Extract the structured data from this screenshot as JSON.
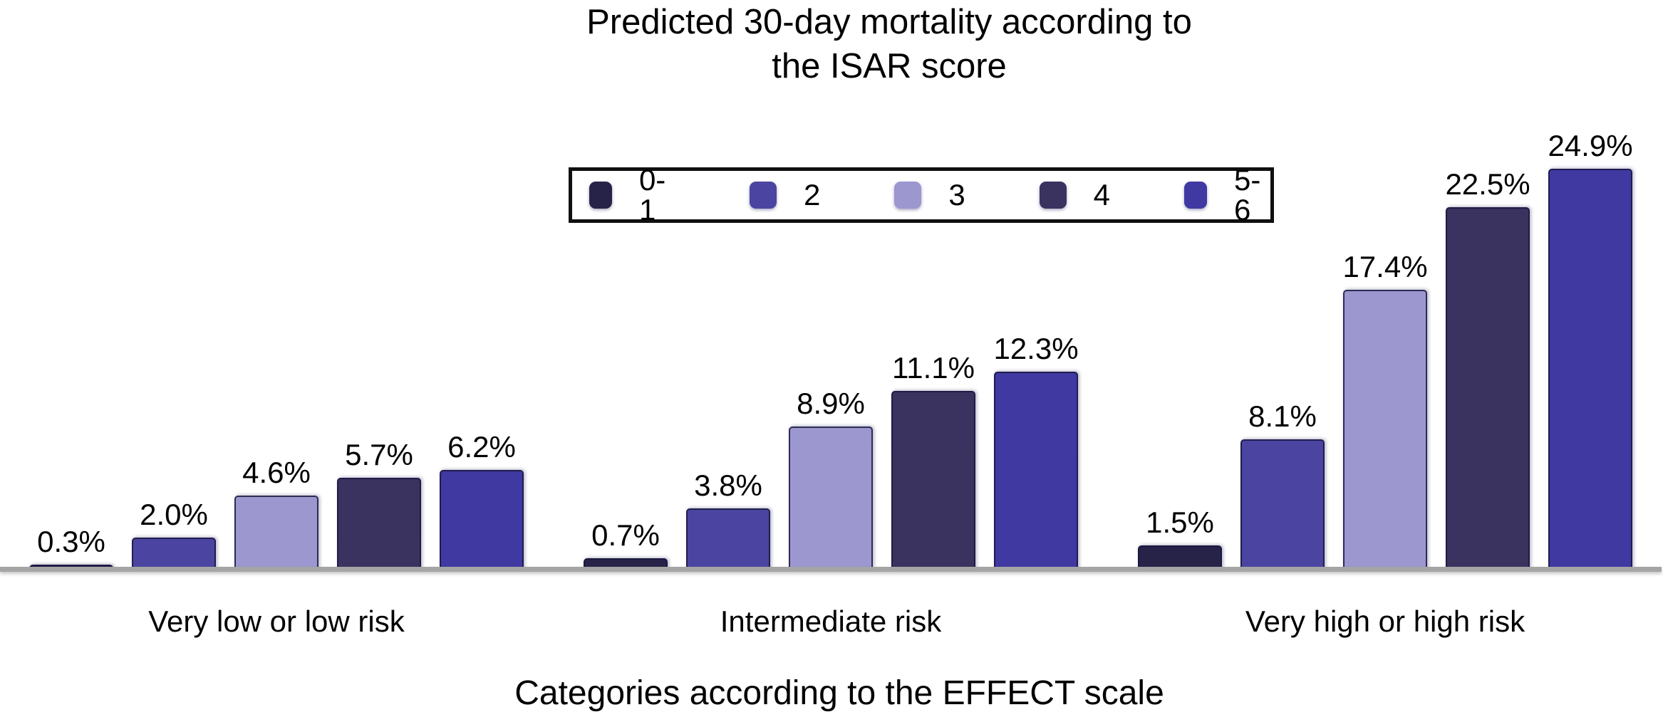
{
  "title": {
    "text": "Predicted 30-day mortality according to\nthe ISAR score"
  },
  "axis": {
    "xlabel": "Categories according to the EFFECT scale"
  },
  "colors": {
    "background": "#ffffff",
    "text": "#000000",
    "axis_line": "#a5a5a5",
    "legend_border": "#101010"
  },
  "chart_data": {
    "type": "bar",
    "title": "Predicted 30-day mortality according to the ISAR score",
    "xlabel": "Categories according to the EFFECT scale",
    "ylabel": "",
    "ylim": [
      0,
      25
    ],
    "grid": false,
    "legend_position": "top-center",
    "legend_entries": [
      "0-1",
      "2",
      "3",
      "4",
      "5-6"
    ],
    "categories": [
      "Very low or low risk",
      "Intermediate risk",
      "Very high or high risk"
    ],
    "series": [
      {
        "name": "0-1",
        "color": "#272348",
        "values": [
          0.3,
          0.7,
          1.5
        ],
        "labels": [
          "0.3%",
          "0.7%",
          "1.5%"
        ]
      },
      {
        "name": "2",
        "color": "#4b45a1",
        "values": [
          2.0,
          3.8,
          8.1
        ],
        "labels": [
          "2.0%",
          "3.8%",
          "8.1%"
        ]
      },
      {
        "name": "3",
        "color": "#9c97cf",
        "values": [
          4.6,
          8.9,
          17.4
        ],
        "labels": [
          "4.6%",
          "8.9%",
          "17.4%"
        ]
      },
      {
        "name": "4",
        "color": "#3a3360",
        "values": [
          5.7,
          11.1,
          22.5
        ],
        "labels": [
          "5.7%",
          "11.1%",
          "22.5%"
        ]
      },
      {
        "name": "5-6",
        "color": "#4039a2",
        "values": [
          6.2,
          12.3,
          24.9
        ],
        "labels": [
          "6.2%",
          "12.3%",
          "24.9%"
        ]
      }
    ]
  }
}
